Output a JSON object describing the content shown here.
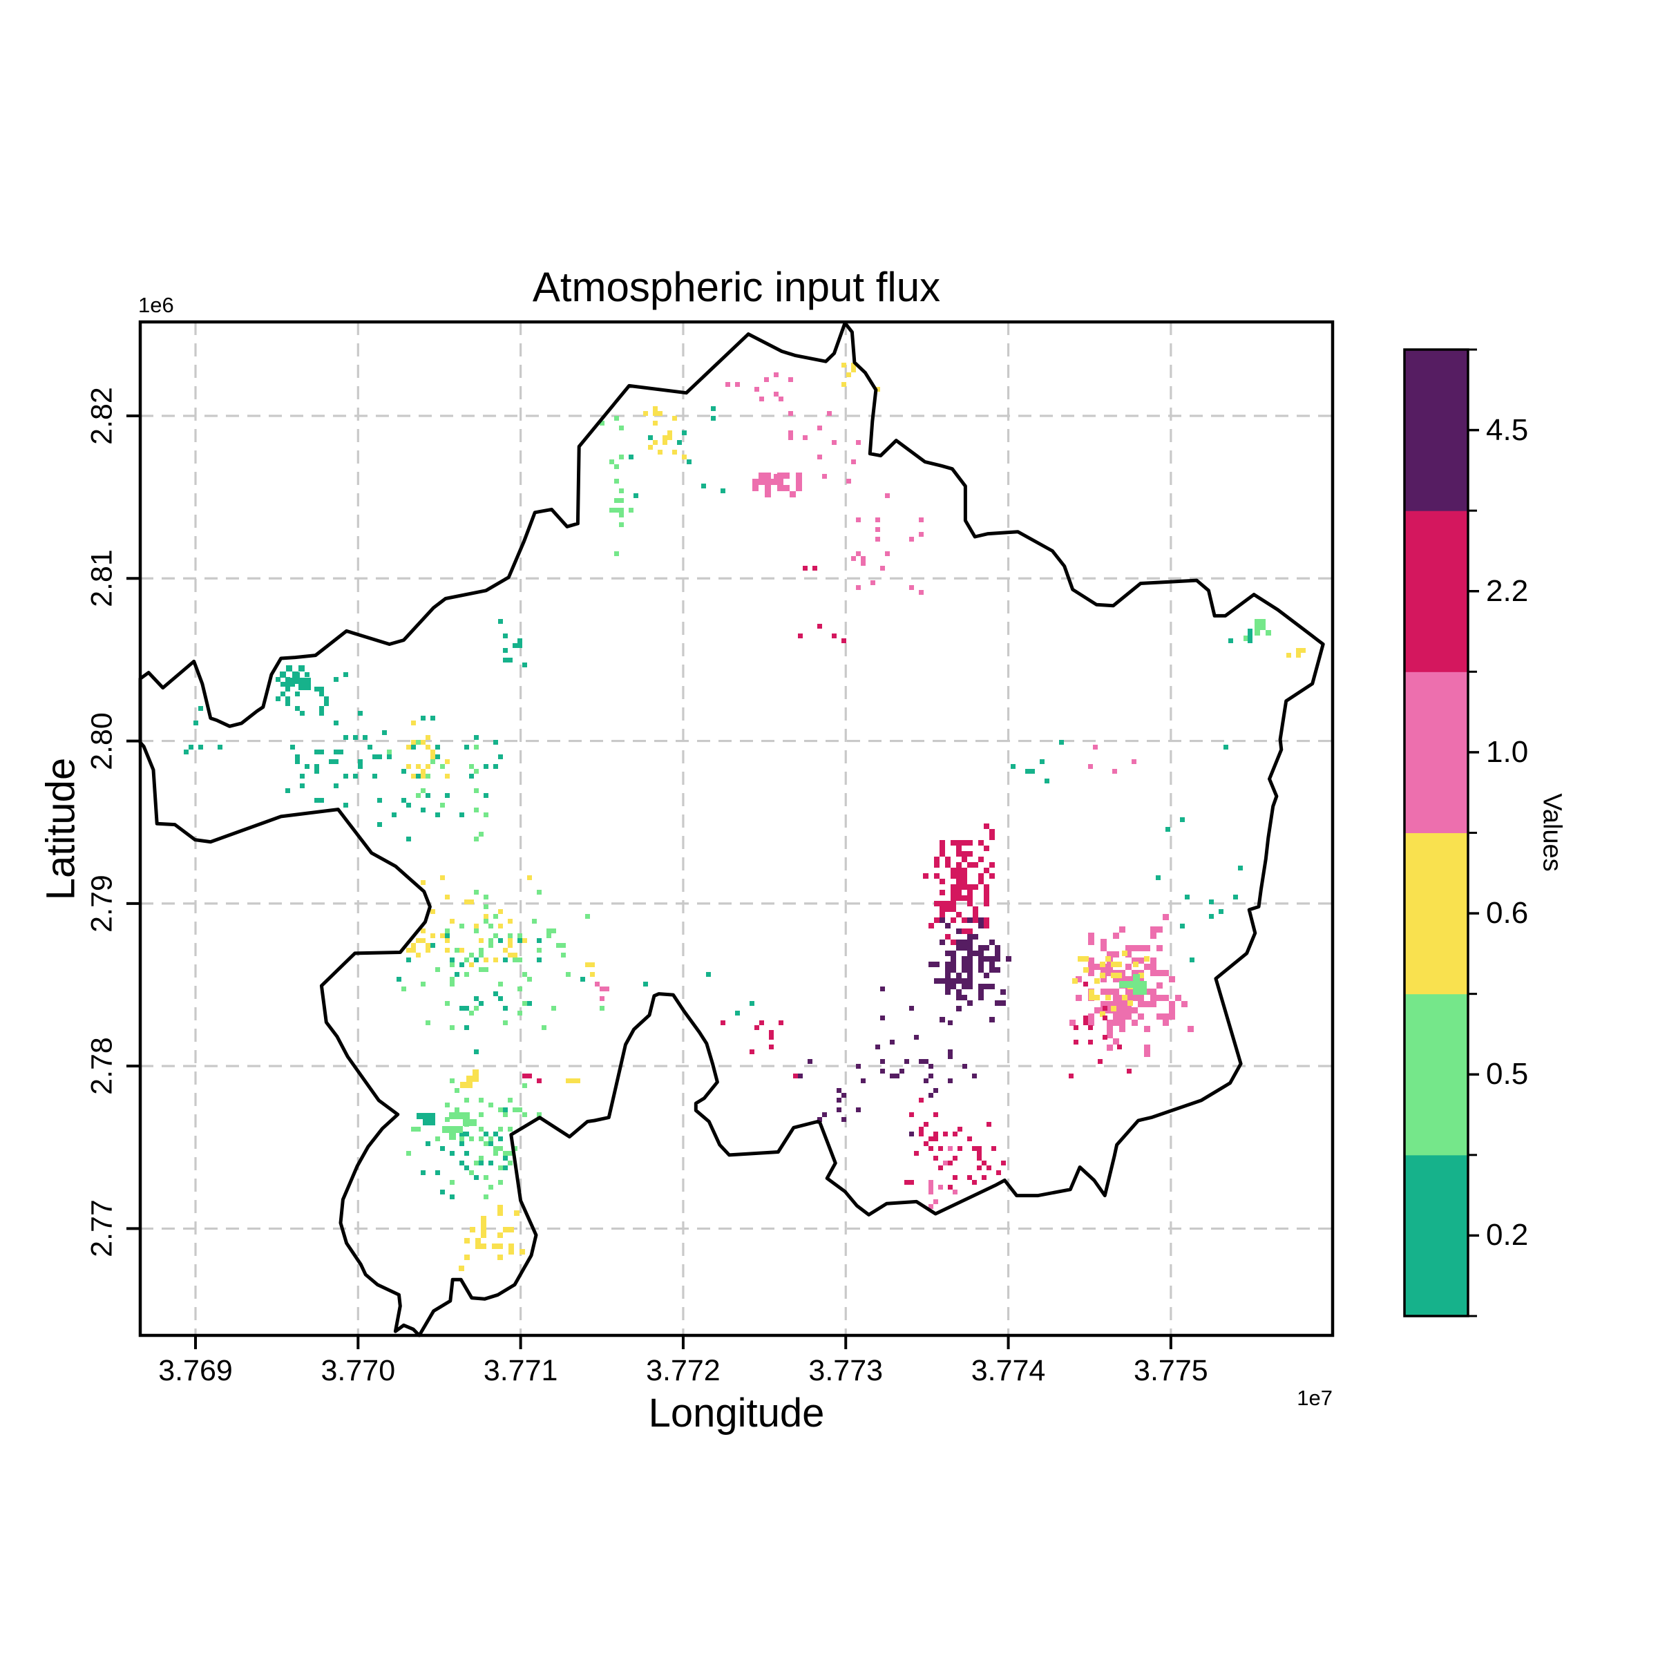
{
  "chart_data": {
    "type": "raster-map",
    "title": "Atmospheric input flux",
    "xlabel": "Longitude",
    "ylabel": "Latitude",
    "x_offset_text": "1e7",
    "y_offset_text": "1e6",
    "grid": true,
    "x_range": [
      37686600,
      37759950
    ],
    "y_range": [
      2763430,
      2825780
    ],
    "x_ticks": [
      {
        "label": "3.769",
        "value": 37690000
      },
      {
        "label": "3.770",
        "value": 37700000
      },
      {
        "label": "3.771",
        "value": 37710000
      },
      {
        "label": "3.772",
        "value": 37720000
      },
      {
        "label": "3.773",
        "value": 37730000
      },
      {
        "label": "3.774",
        "value": 37740000
      },
      {
        "label": "3.775",
        "value": 37750000
      }
    ],
    "y_ticks": [
      {
        "label": "2.77",
        "value": 2770000
      },
      {
        "label": "2.78",
        "value": 2780000
      },
      {
        "label": "2.79",
        "value": 2790000
      },
      {
        "label": "2.80",
        "value": 2800000
      },
      {
        "label": "2.81",
        "value": 2810000
      },
      {
        "label": "2.82",
        "value": 2820000
      }
    ],
    "colorbar": {
      "label": "Values",
      "segments_bottom_to_top": [
        {
          "label": "0.2",
          "color": "#16b28b"
        },
        {
          "label": "0.5",
          "color": "#75e78a"
        },
        {
          "label": "0.6",
          "color": "#f9e14f"
        },
        {
          "label": "1.0",
          "color": "#ed6fae"
        },
        {
          "label": "2.2",
          "color": "#d4175e"
        },
        {
          "label": "4.5",
          "color": "#561d62"
        }
      ]
    },
    "colors": {
      "teal": "#16b28b",
      "green": "#75e78a",
      "yellow": "#f9e14f",
      "pink": "#ed6fae",
      "crimson": "#d4175e",
      "purple": "#561d62",
      "boundary": "#000000",
      "grid": "#c9c9c9"
    },
    "region_boundary_norm": [
      [
        0.0,
        0.352
      ],
      [
        0.007,
        0.346
      ],
      [
        0.019,
        0.361
      ],
      [
        0.045,
        0.335
      ],
      [
        0.052,
        0.357
      ],
      [
        0.059,
        0.391
      ],
      [
        0.064,
        0.393
      ],
      [
        0.075,
        0.399
      ],
      [
        0.085,
        0.396
      ],
      [
        0.098,
        0.384
      ],
      [
        0.103,
        0.38
      ],
      [
        0.11,
        0.348
      ],
      [
        0.118,
        0.332
      ],
      [
        0.13,
        0.331
      ],
      [
        0.147,
        0.329
      ],
      [
        0.173,
        0.305
      ],
      [
        0.209,
        0.318
      ],
      [
        0.221,
        0.314
      ],
      [
        0.246,
        0.282
      ],
      [
        0.256,
        0.273
      ],
      [
        0.29,
        0.265
      ],
      [
        0.309,
        0.252
      ],
      [
        0.322,
        0.216
      ],
      [
        0.331,
        0.188
      ],
      [
        0.345,
        0.185
      ],
      [
        0.358,
        0.202
      ],
      [
        0.367,
        0.199
      ],
      [
        0.368,
        0.123
      ],
      [
        0.41,
        0.063
      ],
      [
        0.458,
        0.07
      ],
      [
        0.51,
        0.012
      ],
      [
        0.538,
        0.029
      ],
      [
        0.549,
        0.033
      ],
      [
        0.575,
        0.039
      ],
      [
        0.582,
        0.031
      ],
      [
        0.591,
        0.001
      ],
      [
        0.597,
        0.01
      ],
      [
        0.599,
        0.04
      ],
      [
        0.608,
        0.05
      ],
      [
        0.617,
        0.067
      ],
      [
        0.614,
        0.098
      ],
      [
        0.612,
        0.13
      ],
      [
        0.621,
        0.132
      ],
      [
        0.634,
        0.117
      ],
      [
        0.658,
        0.138
      ],
      [
        0.672,
        0.142
      ],
      [
        0.681,
        0.145
      ],
      [
        0.692,
        0.162
      ],
      [
        0.692,
        0.196
      ],
      [
        0.7,
        0.212
      ],
      [
        0.711,
        0.209
      ],
      [
        0.736,
        0.207
      ],
      [
        0.765,
        0.226
      ],
      [
        0.775,
        0.241
      ],
      [
        0.782,
        0.264
      ],
      [
        0.802,
        0.279
      ],
      [
        0.816,
        0.28
      ],
      [
        0.839,
        0.258
      ],
      [
        0.886,
        0.255
      ],
      [
        0.896,
        0.265
      ],
      [
        0.901,
        0.29
      ],
      [
        0.91,
        0.29
      ],
      [
        0.934,
        0.269
      ],
      [
        0.954,
        0.284
      ],
      [
        0.982,
        0.309
      ],
      [
        0.992,
        0.318
      ],
      [
        0.983,
        0.357
      ],
      [
        0.961,
        0.374
      ],
      [
        0.956,
        0.412
      ],
      [
        0.957,
        0.422
      ],
      [
        0.947,
        0.451
      ],
      [
        0.953,
        0.468
      ],
      [
        0.95,
        0.478
      ],
      [
        0.946,
        0.509
      ],
      [
        0.944,
        0.53
      ],
      [
        0.94,
        0.56
      ],
      [
        0.938,
        0.577
      ],
      [
        0.93,
        0.58
      ],
      [
        0.935,
        0.603
      ],
      [
        0.928,
        0.623
      ],
      [
        0.902,
        0.648
      ],
      [
        0.923,
        0.732
      ],
      [
        0.914,
        0.751
      ],
      [
        0.89,
        0.768
      ],
      [
        0.848,
        0.785
      ],
      [
        0.837,
        0.788
      ],
      [
        0.819,
        0.812
      ],
      [
        0.817,
        0.823
      ],
      [
        0.809,
        0.862
      ],
      [
        0.8,
        0.847
      ],
      [
        0.788,
        0.834
      ],
      [
        0.78,
        0.856
      ],
      [
        0.753,
        0.862
      ],
      [
        0.735,
        0.862
      ],
      [
        0.725,
        0.847
      ],
      [
        0.717,
        0.852
      ],
      [
        0.667,
        0.88
      ],
      [
        0.651,
        0.868
      ],
      [
        0.626,
        0.87
      ],
      [
        0.611,
        0.881
      ],
      [
        0.601,
        0.872
      ],
      [
        0.591,
        0.858
      ],
      [
        0.576,
        0.845
      ],
      [
        0.583,
        0.83
      ],
      [
        0.57,
        0.79
      ],
      [
        0.568,
        0.789
      ],
      [
        0.548,
        0.795
      ],
      [
        0.535,
        0.819
      ],
      [
        0.494,
        0.822
      ],
      [
        0.486,
        0.812
      ],
      [
        0.477,
        0.789
      ],
      [
        0.466,
        0.778
      ],
      [
        0.466,
        0.771
      ],
      [
        0.473,
        0.766
      ],
      [
        0.484,
        0.75
      ],
      [
        0.48,
        0.732
      ],
      [
        0.475,
        0.712
      ],
      [
        0.469,
        0.701
      ],
      [
        0.456,
        0.68
      ],
      [
        0.447,
        0.664
      ],
      [
        0.435,
        0.663
      ],
      [
        0.431,
        0.665
      ],
      [
        0.427,
        0.684
      ],
      [
        0.414,
        0.698
      ],
      [
        0.407,
        0.713
      ],
      [
        0.393,
        0.785
      ],
      [
        0.381,
        0.788
      ],
      [
        0.375,
        0.789
      ],
      [
        0.36,
        0.804
      ],
      [
        0.335,
        0.785
      ],
      [
        0.311,
        0.802
      ],
      [
        0.319,
        0.867
      ],
      [
        0.332,
        0.901
      ],
      [
        0.328,
        0.921
      ],
      [
        0.314,
        0.95
      ],
      [
        0.3,
        0.96
      ],
      [
        0.289,
        0.964
      ],
      [
        0.278,
        0.963
      ],
      [
        0.269,
        0.945
      ],
      [
        0.262,
        0.945
      ],
      [
        0.26,
        0.966
      ],
      [
        0.246,
        0.976
      ],
      [
        0.234,
        1.0
      ],
      [
        0.229,
        0.994
      ],
      [
        0.221,
        0.99
      ],
      [
        0.214,
        0.996
      ],
      [
        0.218,
        0.971
      ],
      [
        0.217,
        0.96
      ],
      [
        0.199,
        0.95
      ],
      [
        0.189,
        0.94
      ],
      [
        0.185,
        0.93
      ],
      [
        0.173,
        0.909
      ],
      [
        0.168,
        0.889
      ],
      [
        0.17,
        0.866
      ],
      [
        0.182,
        0.833
      ],
      [
        0.191,
        0.814
      ],
      [
        0.203,
        0.796
      ],
      [
        0.216,
        0.782
      ],
      [
        0.2,
        0.768
      ],
      [
        0.174,
        0.725
      ],
      [
        0.165,
        0.705
      ],
      [
        0.156,
        0.691
      ],
      [
        0.152,
        0.655
      ],
      [
        0.18,
        0.623
      ],
      [
        0.218,
        0.622
      ],
      [
        0.239,
        0.592
      ],
      [
        0.243,
        0.577
      ],
      [
        0.238,
        0.562
      ],
      [
        0.214,
        0.537
      ],
      [
        0.194,
        0.524
      ],
      [
        0.166,
        0.481
      ],
      [
        0.118,
        0.488
      ],
      [
        0.059,
        0.513
      ],
      [
        0.046,
        0.511
      ],
      [
        0.029,
        0.496
      ],
      [
        0.014,
        0.495
      ],
      [
        0.011,
        0.442
      ],
      [
        0.003,
        0.419
      ],
      [
        0.0,
        0.415
      ]
    ],
    "raster_clusters": [
      {
        "x": 0.135,
        "y": 0.36,
        "sx": 0.035,
        "sy": 0.028,
        "n": 26,
        "c": "teal"
      },
      {
        "x": 0.127,
        "y": 0.35,
        "sx": 0.01,
        "sy": 0.009,
        "n": 16,
        "c": "teal",
        "s": 9
      },
      {
        "x": 0.155,
        "y": 0.432,
        "sx": 0.05,
        "sy": 0.048,
        "n": 40,
        "c": "teal"
      },
      {
        "x": 0.05,
        "y": 0.4,
        "sx": 0.028,
        "sy": 0.042,
        "n": 10,
        "c": "teal"
      },
      {
        "x": 0.24,
        "y": 0.45,
        "sx": 0.045,
        "sy": 0.055,
        "n": 30,
        "c": "teal"
      },
      {
        "x": 0.245,
        "y": 0.465,
        "sx": 0.045,
        "sy": 0.055,
        "n": 16,
        "c": "green"
      },
      {
        "x": 0.3,
        "y": 0.62,
        "sx": 0.065,
        "sy": 0.068,
        "n": 60,
        "c": "green"
      },
      {
        "x": 0.29,
        "y": 0.645,
        "sx": 0.062,
        "sy": 0.058,
        "n": 24,
        "c": "teal"
      },
      {
        "x": 0.26,
        "y": 0.598,
        "sx": 0.058,
        "sy": 0.05,
        "n": 44,
        "c": "yellow"
      },
      {
        "x": 0.235,
        "y": 0.42,
        "sx": 0.025,
        "sy": 0.03,
        "n": 16,
        "c": "yellow"
      },
      {
        "x": 0.29,
        "y": 0.798,
        "sx": 0.05,
        "sy": 0.06,
        "n": 65,
        "c": "green"
      },
      {
        "x": 0.283,
        "y": 0.818,
        "sx": 0.048,
        "sy": 0.055,
        "n": 24,
        "c": "teal"
      },
      {
        "x": 0.294,
        "y": 0.902,
        "sx": 0.028,
        "sy": 0.026,
        "n": 30,
        "c": "yellow",
        "s": 8
      },
      {
        "x": 0.275,
        "y": 0.746,
        "sx": 0.007,
        "sy": 0.007,
        "n": 7,
        "c": "yellow",
        "s": 9
      },
      {
        "x": 0.266,
        "y": 0.79,
        "sx": 0.01,
        "sy": 0.012,
        "n": 11,
        "c": "green",
        "s": 10
      },
      {
        "x": 0.24,
        "y": 0.782,
        "sx": 0.008,
        "sy": 0.007,
        "n": 7,
        "c": "teal",
        "s": 9
      },
      {
        "x": 0.4,
        "y": 0.165,
        "sx": 0.014,
        "sy": 0.05,
        "n": 14,
        "c": "green"
      },
      {
        "x": 0.432,
        "y": 0.105,
        "sx": 0.018,
        "sy": 0.032,
        "n": 16,
        "c": "yellow"
      },
      {
        "x": 0.378,
        "y": 0.095,
        "sx": 0.024,
        "sy": 0.024,
        "n": 12,
        "c": "green"
      },
      {
        "x": 0.532,
        "y": 0.158,
        "sx": 0.026,
        "sy": 0.01,
        "n": 22,
        "c": "pink",
        "s": 9
      },
      {
        "x": 0.52,
        "y": 0.062,
        "sx": 0.032,
        "sy": 0.014,
        "n": 9,
        "c": "pink"
      },
      {
        "x": 0.565,
        "y": 0.125,
        "sx": 0.038,
        "sy": 0.04,
        "n": 13,
        "c": "pink"
      },
      {
        "x": 0.6,
        "y": 0.05,
        "sx": 0.018,
        "sy": 0.02,
        "n": 8,
        "c": "yellow"
      },
      {
        "x": 0.62,
        "y": 0.225,
        "sx": 0.048,
        "sy": 0.058,
        "n": 18,
        "c": "pink"
      },
      {
        "x": 0.7,
        "y": 0.088,
        "sx": 0.045,
        "sy": 0.035,
        "n": 9,
        "c": "pink"
      },
      {
        "x": 0.56,
        "y": 0.285,
        "sx": 0.045,
        "sy": 0.045,
        "n": 6,
        "c": "crimson"
      },
      {
        "x": 0.935,
        "y": 0.299,
        "sx": 0.015,
        "sy": 0.011,
        "n": 9,
        "c": "green",
        "s": 8
      },
      {
        "x": 0.925,
        "y": 0.308,
        "sx": 0.013,
        "sy": 0.01,
        "n": 5,
        "c": "teal"
      },
      {
        "x": 0.866,
        "y": 0.082,
        "sx": 0.008,
        "sy": 0.012,
        "n": 4,
        "c": "yellow"
      },
      {
        "x": 0.967,
        "y": 0.325,
        "sx": 0.008,
        "sy": 0.008,
        "n": 4,
        "c": "yellow"
      },
      {
        "x": 0.9,
        "y": 0.55,
        "sx": 0.045,
        "sy": 0.125,
        "n": 14,
        "c": "teal"
      },
      {
        "x": 0.688,
        "y": 0.555,
        "sx": 0.026,
        "sy": 0.048,
        "n": 120,
        "c": "crimson",
        "s": 8
      },
      {
        "x": 0.694,
        "y": 0.633,
        "sx": 0.028,
        "sy": 0.042,
        "n": 120,
        "c": "purple",
        "s": 8
      },
      {
        "x": 0.655,
        "y": 0.73,
        "sx": 0.048,
        "sy": 0.058,
        "n": 28,
        "c": "purple"
      },
      {
        "x": 0.57,
        "y": 0.75,
        "sx": 0.038,
        "sy": 0.048,
        "n": 10,
        "c": "purple"
      },
      {
        "x": 0.52,
        "y": 0.7,
        "sx": 0.045,
        "sy": 0.068,
        "n": 9,
        "c": "crimson"
      },
      {
        "x": 0.68,
        "y": 0.818,
        "sx": 0.04,
        "sy": 0.046,
        "n": 46,
        "c": "crimson"
      },
      {
        "x": 0.652,
        "y": 0.85,
        "sx": 0.038,
        "sy": 0.038,
        "n": 12,
        "c": "pink"
      },
      {
        "x": 0.824,
        "y": 0.657,
        "sx": 0.042,
        "sy": 0.052,
        "n": 150,
        "c": "pink",
        "s": 9
      },
      {
        "x": 0.808,
        "y": 0.645,
        "sx": 0.03,
        "sy": 0.036,
        "n": 30,
        "c": "yellow",
        "s": 8
      },
      {
        "x": 0.83,
        "y": 0.655,
        "sx": 0.01,
        "sy": 0.01,
        "n": 11,
        "c": "green",
        "s": 10
      },
      {
        "x": 0.8,
        "y": 0.7,
        "sx": 0.038,
        "sy": 0.038,
        "n": 14,
        "c": "crimson"
      },
      {
        "x": 0.31,
        "y": 0.32,
        "sx": 0.024,
        "sy": 0.022,
        "n": 9,
        "c": "teal"
      },
      {
        "x": 0.46,
        "y": 0.68,
        "sx": 0.065,
        "sy": 0.065,
        "n": 7,
        "c": "teal"
      },
      {
        "x": 0.325,
        "y": 0.742,
        "sx": 0.009,
        "sy": 0.009,
        "n": 3,
        "c": "crimson"
      },
      {
        "x": 0.36,
        "y": 0.745,
        "sx": 0.008,
        "sy": 0.008,
        "n": 4,
        "c": "yellow"
      },
      {
        "x": 0.385,
        "y": 0.655,
        "sx": 0.008,
        "sy": 0.01,
        "n": 4,
        "c": "pink"
      },
      {
        "x": 0.38,
        "y": 0.635,
        "sx": 0.007,
        "sy": 0.007,
        "n": 3,
        "c": "yellow"
      },
      {
        "x": 0.43,
        "y": 0.13,
        "sx": 0.06,
        "sy": 0.05,
        "n": 10,
        "c": "teal"
      },
      {
        "x": 0.76,
        "y": 0.43,
        "sx": 0.05,
        "sy": 0.04,
        "n": 6,
        "c": "teal"
      },
      {
        "x": 0.8,
        "y": 0.42,
        "sx": 0.03,
        "sy": 0.04,
        "n": 4,
        "c": "pink"
      }
    ]
  }
}
